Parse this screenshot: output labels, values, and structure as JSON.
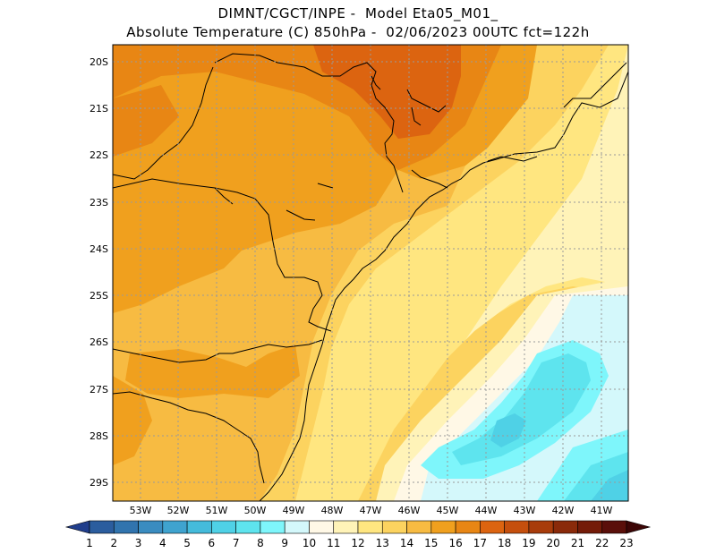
{
  "title": {
    "line1": "DIMNT/CGCT/INPE -  Model Eta05_M01_",
    "line2": "Absolute Temperature (C) 850hPa -  02/06/2023 00UTC fct=122h"
  },
  "map": {
    "lat_labels": [
      "20S",
      "21S",
      "22S",
      "23S",
      "24S",
      "25S",
      "26S",
      "27S",
      "28S",
      "29S"
    ],
    "lon_labels": [
      "53W",
      "52W",
      "51W",
      "50W",
      "49W",
      "48W",
      "47W",
      "46W",
      "45W",
      "44W",
      "43W",
      "42W",
      "41W"
    ]
  },
  "colorbar": {
    "labels": [
      "1",
      "2",
      "3",
      "4",
      "5",
      "6",
      "7",
      "8",
      "9",
      "10",
      "11",
      "12",
      "13",
      "14",
      "15",
      "16",
      "17",
      "18",
      "19",
      "20",
      "21",
      "22",
      "23"
    ],
    "colors": [
      "#203e8c",
      "#2b5d9e",
      "#3174ae",
      "#3a8cc0",
      "#3fa3cf",
      "#44bbdb",
      "#4fd1e6",
      "#5ee4ee",
      "#7ef6fb",
      "#d4f8fb",
      "#fff8e6",
      "#fff3b8",
      "#ffe680",
      "#fcd35f",
      "#f7bb42",
      "#f0a01e",
      "#e88614",
      "#dc6410",
      "#c54f0d",
      "#a83c0b",
      "#8a2a0a",
      "#741b08",
      "#5a0f0a",
      "#3c0606"
    ]
  }
}
